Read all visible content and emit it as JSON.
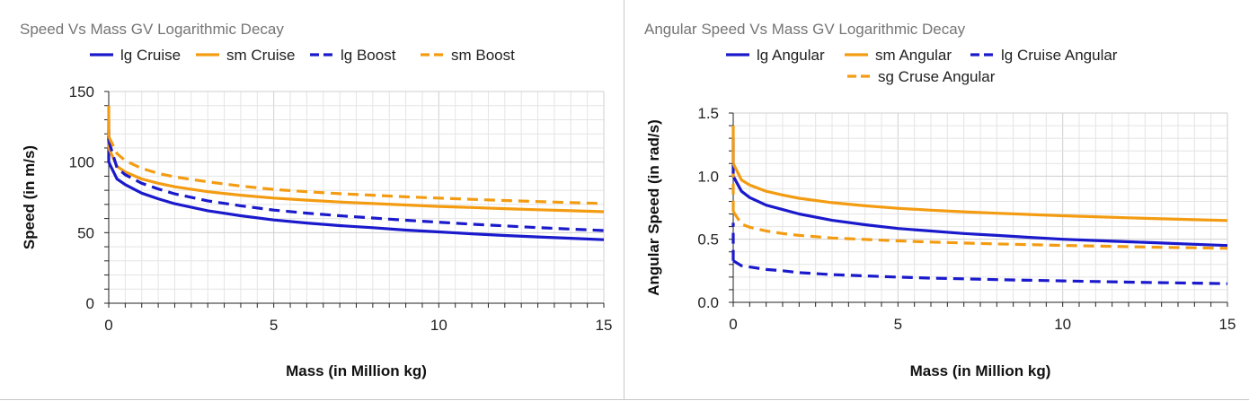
{
  "chart_data": [
    {
      "type": "line",
      "title": "Speed Vs Mass GV Logarithmic Decay",
      "xlabel": "Mass (in Million kg)",
      "ylabel": "Speed (in m/s)",
      "xlim": [
        0,
        15
      ],
      "ylim": [
        0,
        150
      ],
      "xticks": [
        "0",
        "5",
        "10",
        "15"
      ],
      "yticks": [
        "0",
        "50",
        "100",
        "150"
      ],
      "legend_position": "top",
      "x": [
        0,
        0.25,
        0.5,
        1,
        1.5,
        2,
        3,
        4,
        5,
        6,
        7,
        8,
        9,
        10,
        11,
        12,
        13,
        14,
        15
      ],
      "series": [
        {
          "name": "lg Cruise",
          "color": "#1a1acc",
          "dash": "solid",
          "values": [
            100,
            88,
            84,
            78,
            74,
            70.5,
            65.5,
            62,
            59,
            56.8,
            55,
            53.5,
            51.8,
            50.5,
            49.2,
            48,
            47,
            46,
            45
          ]
        },
        {
          "name": "sm Cruise",
          "color": "#f39c12",
          "dash": "solid",
          "values": [
            110,
            97,
            93,
            88,
            85,
            82.5,
            79,
            76.5,
            74.5,
            73,
            71.7,
            70.6,
            69.6,
            68.6,
            67.8,
            67,
            66.2,
            65.5,
            64.8
          ]
        },
        {
          "name": "lg Boost",
          "color": "#1a1acc",
          "dash": "dashed",
          "values": [
            115,
            96,
            91,
            85,
            81,
            77.5,
            72.5,
            69,
            66,
            63.8,
            62,
            60.4,
            58.8,
            57.4,
            56,
            54.8,
            53.6,
            52.5,
            51.5
          ]
        },
        {
          "name": "sm Boost",
          "color": "#f39c12",
          "dash": "dashed",
          "values": [
            118,
            106,
            101,
            95.5,
            92,
            89.5,
            86,
            83,
            80.6,
            79,
            77.6,
            76.5,
            75.4,
            74.5,
            73.6,
            72.8,
            72,
            71.3,
            70.6
          ]
        }
      ]
    },
    {
      "type": "line",
      "title": "Angular Speed Vs Mass GV Logarithmic Decay",
      "xlabel": "Mass (in Million kg)",
      "ylabel": "Angular Speed (in rad/s)",
      "xlim": [
        0,
        15
      ],
      "ylim": [
        0,
        1.5
      ],
      "xticks": [
        "0",
        "5",
        "10",
        "15"
      ],
      "yticks": [
        "0.0",
        "0.5",
        "1.0",
        "1.5"
      ],
      "legend_position": "top",
      "x": [
        0,
        0.25,
        0.5,
        1,
        1.5,
        2,
        3,
        4,
        5,
        6,
        7,
        8,
        9,
        10,
        11,
        12,
        13,
        14,
        15
      ],
      "series": [
        {
          "name": "lg Angular",
          "color": "#1a1acc",
          "dash": "solid",
          "values": [
            1.0,
            0.88,
            0.83,
            0.77,
            0.735,
            0.7,
            0.65,
            0.615,
            0.585,
            0.565,
            0.545,
            0.53,
            0.515,
            0.5,
            0.49,
            0.48,
            0.47,
            0.46,
            0.45
          ]
        },
        {
          "name": "sm Angular",
          "color": "#f39c12",
          "dash": "solid",
          "values": [
            1.1,
            0.97,
            0.93,
            0.88,
            0.85,
            0.825,
            0.79,
            0.765,
            0.745,
            0.73,
            0.717,
            0.706,
            0.696,
            0.686,
            0.678,
            0.67,
            0.662,
            0.655,
            0.648
          ]
        },
        {
          "name": "lg Cruise Angular",
          "color": "#1a1acc",
          "dash": "dashed",
          "values": [
            0.33,
            0.29,
            0.28,
            0.26,
            0.25,
            0.235,
            0.22,
            0.21,
            0.2,
            0.192,
            0.186,
            0.18,
            0.175,
            0.17,
            0.165,
            0.16,
            0.156,
            0.152,
            0.148
          ]
        },
        {
          "name": "sg Cruse Angular",
          "color": "#f39c12",
          "dash": "dashed",
          "values": [
            0.72,
            0.62,
            0.595,
            0.565,
            0.545,
            0.53,
            0.51,
            0.498,
            0.487,
            0.478,
            0.47,
            0.463,
            0.457,
            0.451,
            0.446,
            0.441,
            0.436,
            0.432,
            0.428
          ]
        }
      ]
    }
  ]
}
